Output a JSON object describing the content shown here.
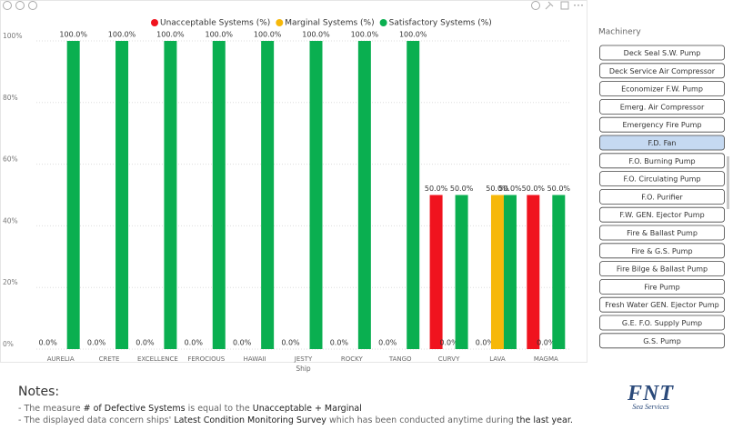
{
  "chart_data": {
    "type": "bar",
    "x_label": "Ship",
    "categories": [
      "AURELIA",
      "CRETE",
      "EXCELLENCE",
      "FEROCIOUS",
      "HAWAII",
      "JESTY",
      "ROCKY",
      "TANGO",
      "CURVY",
      "LAVA",
      "MAGMA"
    ],
    "series": [
      {
        "name": "Unacceptable Systems (%)",
        "color": "#f0131e",
        "values": [
          0,
          0,
          0,
          0,
          0,
          0,
          0,
          0,
          50,
          0,
          50
        ],
        "value_labels": [
          "0.0%",
          "0.0%",
          "0.0%",
          "0.0%",
          "0.0%",
          "0.0%",
          "0.0%",
          "0.0%",
          "50.0%",
          "0.0%",
          "50.0%"
        ]
      },
      {
        "name": "Marginal Systems (%)",
        "color": "#f6b80a",
        "values": [
          null,
          null,
          null,
          null,
          null,
          null,
          null,
          null,
          0,
          50,
          0
        ],
        "value_labels": [
          null,
          null,
          null,
          null,
          null,
          null,
          null,
          null,
          "0.0%",
          "50.0%",
          "0.0%"
        ]
      },
      {
        "name": "Satisfactory Systems (%)",
        "color": "#0aaf50",
        "values": [
          100,
          100,
          100,
          100,
          100,
          100,
          100,
          100,
          50,
          50,
          50
        ],
        "value_labels": [
          "100.0%",
          "100.0%",
          "100.0%",
          "100.0%",
          "100.0%",
          "100.0%",
          "100.0%",
          "100.0%",
          "50.0%",
          "50.0%",
          "50.0%"
        ]
      }
    ],
    "ylim": [
      0,
      100
    ],
    "yticks": [
      {
        "value": 0,
        "label": "0%"
      },
      {
        "value": 20,
        "label": "20%"
      },
      {
        "value": 40,
        "label": "40%"
      },
      {
        "value": 60,
        "label": "60%"
      },
      {
        "value": 80,
        "label": "80%"
      },
      {
        "value": 100,
        "label": "100%"
      }
    ],
    "legend": "top"
  },
  "slicer": {
    "title": "Machinery",
    "items": [
      "Deck Seal S.W. Pump",
      "Deck Service Air Compressor",
      "Economizer F.W. Pump",
      "Emerg. Air Compressor",
      "Emergency Fire Pump",
      "F.D. Fan",
      "F.O. Burning Pump",
      "F.O. Circulating Pump",
      "F.O. Purifier",
      "F.W. GEN. Ejector Pump",
      "Fire & Ballast Pump",
      "Fire & G.S. Pump",
      "Fire Bilge & Ballast Pump",
      "Fire Pump",
      "Fresh Water GEN. Ejector Pump",
      "G.E. F.O. Supply Pump",
      "G.S. Pump"
    ],
    "selected": "F.D. Fan"
  },
  "notes": {
    "title": "Notes:",
    "lines": [
      [
        "- The measure ",
        "# of Defective Systems",
        " is equal to the ",
        "Unacceptable + Marginal"
      ],
      [
        "- The displayed data concern ships' ",
        "Latest Condition Monitoring Survey",
        " which has been conducted anytime during ",
        "the last year."
      ]
    ]
  },
  "logo": {
    "name": "FNT",
    "tagline": "Sea Services"
  }
}
